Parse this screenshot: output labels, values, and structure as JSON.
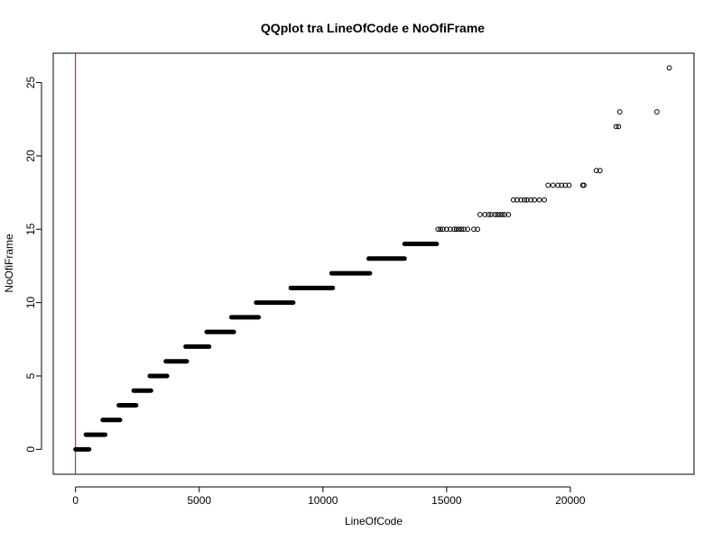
{
  "chart_data": {
    "type": "scatter",
    "title": "QQplot tra LineOfCode e NoOfiFrame",
    "xlabel": "LineOfCode",
    "ylabel": "NoOfiFrame",
    "xlim": [
      -900,
      25000
    ],
    "ylim": [
      -1.7,
      27.0
    ],
    "xticks": [
      0,
      5000,
      10000,
      15000,
      20000
    ],
    "yticks": [
      0,
      5,
      10,
      15,
      20,
      25
    ],
    "vline": {
      "x": 0,
      "color": "#cc0000"
    },
    "point_color": "#000000",
    "grid": false,
    "legend": "none",
    "dense_segments": [
      {
        "y": 0,
        "x_start": 0,
        "x_end": 550
      },
      {
        "y": 1,
        "x_start": 420,
        "x_end": 1200
      },
      {
        "y": 2,
        "x_start": 1100,
        "x_end": 1800
      },
      {
        "y": 3,
        "x_start": 1750,
        "x_end": 2450
      },
      {
        "y": 4,
        "x_start": 2350,
        "x_end": 3050
      },
      {
        "y": 5,
        "x_start": 3000,
        "x_end": 3700
      },
      {
        "y": 6,
        "x_start": 3650,
        "x_end": 4500
      },
      {
        "y": 7,
        "x_start": 4450,
        "x_end": 5400
      },
      {
        "y": 8,
        "x_start": 5300,
        "x_end": 6400
      },
      {
        "y": 9,
        "x_start": 6300,
        "x_end": 7400
      },
      {
        "y": 10,
        "x_start": 7300,
        "x_end": 8800
      },
      {
        "y": 11,
        "x_start": 8700,
        "x_end": 10400
      },
      {
        "y": 12,
        "x_start": 10350,
        "x_end": 11900
      },
      {
        "y": 13,
        "x_start": 11850,
        "x_end": 13300
      },
      {
        "y": 14,
        "x_start": 13300,
        "x_end": 14600
      }
    ],
    "points": [
      {
        "x": 14650,
        "y": 15
      },
      {
        "x": 14750,
        "y": 15
      },
      {
        "x": 14850,
        "y": 15
      },
      {
        "x": 15000,
        "y": 15
      },
      {
        "x": 15150,
        "y": 15
      },
      {
        "x": 15300,
        "y": 15
      },
      {
        "x": 15400,
        "y": 15
      },
      {
        "x": 15500,
        "y": 15
      },
      {
        "x": 15600,
        "y": 15
      },
      {
        "x": 15700,
        "y": 15
      },
      {
        "x": 15850,
        "y": 15
      },
      {
        "x": 16100,
        "y": 15
      },
      {
        "x": 16250,
        "y": 15
      },
      {
        "x": 16350,
        "y": 16
      },
      {
        "x": 16550,
        "y": 16
      },
      {
        "x": 16700,
        "y": 16
      },
      {
        "x": 16800,
        "y": 16
      },
      {
        "x": 16950,
        "y": 16
      },
      {
        "x": 17050,
        "y": 16
      },
      {
        "x": 17150,
        "y": 16
      },
      {
        "x": 17250,
        "y": 16
      },
      {
        "x": 17350,
        "y": 16
      },
      {
        "x": 17500,
        "y": 16
      },
      {
        "x": 17700,
        "y": 17
      },
      {
        "x": 17850,
        "y": 17
      },
      {
        "x": 18000,
        "y": 17
      },
      {
        "x": 18150,
        "y": 17
      },
      {
        "x": 18250,
        "y": 17
      },
      {
        "x": 18400,
        "y": 17
      },
      {
        "x": 18550,
        "y": 17
      },
      {
        "x": 18750,
        "y": 17
      },
      {
        "x": 18950,
        "y": 17
      },
      {
        "x": 19100,
        "y": 18
      },
      {
        "x": 19300,
        "y": 18
      },
      {
        "x": 19500,
        "y": 18
      },
      {
        "x": 19650,
        "y": 18
      },
      {
        "x": 19800,
        "y": 18
      },
      {
        "x": 19950,
        "y": 18
      },
      {
        "x": 20500,
        "y": 18
      },
      {
        "x": 20550,
        "y": 18
      },
      {
        "x": 21050,
        "y": 19
      },
      {
        "x": 21200,
        "y": 19
      },
      {
        "x": 21850,
        "y": 22
      },
      {
        "x": 21950,
        "y": 22
      },
      {
        "x": 22000,
        "y": 23
      },
      {
        "x": 23500,
        "y": 23
      },
      {
        "x": 24000,
        "y": 26
      }
    ]
  }
}
